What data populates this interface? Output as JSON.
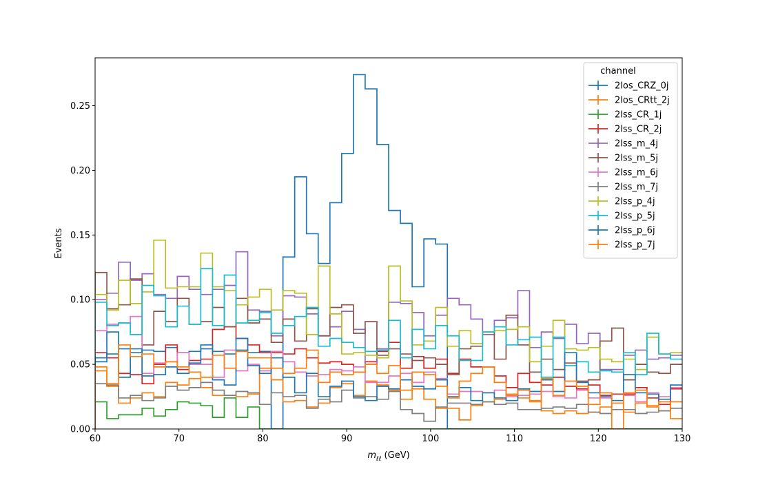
{
  "chart_data": {
    "type": "line",
    "drawstyle": "step",
    "xlabel": "m_ℓℓ (GeV)",
    "xlabel_main": "m",
    "xlabel_sub": "ℓℓ",
    "xlabel_unit": " (GeV)",
    "ylabel": "Events",
    "xlim": [
      60,
      130
    ],
    "ylim": [
      0,
      0.287
    ],
    "xticks": [
      60,
      70,
      80,
      90,
      100,
      110,
      120,
      130
    ],
    "yticks": [
      0.0,
      0.05,
      0.1,
      0.15,
      0.2,
      0.25
    ],
    "xtick_labels": [
      "60",
      "70",
      "80",
      "90",
      "100",
      "110",
      "120",
      "130"
    ],
    "ytick_labels": [
      "0.00",
      "0.05",
      "0.10",
      "0.15",
      "0.20",
      "0.25"
    ],
    "grid": false,
    "legend": {
      "title": "channel",
      "placement": "top-right"
    },
    "bin_edges": [
      60,
      61.4,
      62.8,
      64.2,
      65.6,
      67,
      68.4,
      69.8,
      71.2,
      72.6,
      74,
      75.4,
      76.8,
      78.2,
      79.6,
      81,
      82.4,
      83.8,
      85.2,
      86.6,
      88,
      89.4,
      90.8,
      92.2,
      93.6,
      95,
      96.4,
      97.8,
      99.2,
      100.6,
      102,
      103.4,
      104.8,
      106.2,
      107.6,
      109,
      110.4,
      111.8,
      113.2,
      114.6,
      116,
      117.4,
      118.8,
      120.2,
      121.6,
      123,
      124.4,
      125.8,
      127.2,
      128.6,
      130
    ],
    "series": [
      {
        "name": "2los_CRZ_0j",
        "color": "#1f77b4",
        "values": [
          0.052,
          0.058,
          0.062,
          0.059,
          0.061,
          0.06,
          0.063,
          0.059,
          0.06,
          0.062,
          0.06,
          0.058,
          0.061,
          0.059,
          0.06,
          0.0,
          0.133,
          0.195,
          0.151,
          0.128,
          0.175,
          0.213,
          0.274,
          0.263,
          0.22,
          0.169,
          0.159,
          0.11,
          0.147,
          0.143,
          0.0,
          0.0,
          0.0,
          0.0,
          0.0,
          0.0,
          0.0,
          0.0,
          0.0,
          0.0,
          0.0,
          0.0,
          0.0,
          0.0,
          0.0,
          0.0,
          0.0,
          0.0,
          0.0,
          0.0
        ]
      },
      {
        "name": "2los_CRtt_2j",
        "color": "#ff7f0e",
        "values": [
          0.045,
          0.033,
          0.02,
          0.024,
          0.028,
          0.025,
          0.036,
          0.034,
          0.039,
          0.032,
          0.026,
          0.026,
          0.025,
          0.027,
          0.047,
          0.038,
          0.021,
          0.022,
          0.017,
          0.02,
          0.032,
          0.035,
          0.026,
          0.037,
          0.034,
          0.03,
          0.023,
          0.031,
          0.023,
          0.016,
          0.016,
          0.007,
          0.018,
          0.021,
          0.023,
          0.027,
          0.024,
          0.022,
          0.014,
          0.012,
          0.014,
          0.012,
          0.013,
          0.017,
          0.02,
          0.013,
          0.02,
          0.017,
          0.014,
          0.021
        ]
      },
      {
        "name": "2lss_CR_1j",
        "color": "#2ca02c",
        "values": [
          0.021,
          0.008,
          0.011,
          0.011,
          0.016,
          0.01,
          0.015,
          0.021,
          0.02,
          0.018,
          0.009,
          0.024,
          0.009,
          0.017,
          0.0,
          0.0,
          0.0,
          0.0,
          0.0,
          0.0,
          0.0,
          0.0,
          0.0,
          0.0,
          0.0,
          0.0,
          0.0,
          0.0,
          0.0,
          0.0,
          0.0,
          0.0,
          0.0,
          0.0,
          0.0,
          0.0,
          0.0,
          0.0,
          0.0,
          0.0,
          0.0,
          0.0,
          0.0,
          0.0,
          0.0,
          0.0,
          0.0,
          0.0,
          0.0,
          0.0
        ]
      },
      {
        "name": "2lss_CR_2j",
        "color": "#d62728",
        "values": [
          0.059,
          0.055,
          0.043,
          0.042,
          0.035,
          0.05,
          0.065,
          0.046,
          0.053,
          0.054,
          0.077,
          0.079,
          0.07,
          0.065,
          0.059,
          0.059,
          0.058,
          0.062,
          0.055,
          0.051,
          0.052,
          0.05,
          0.044,
          0.052,
          0.06,
          0.067,
          0.047,
          0.056,
          0.047,
          0.054,
          0.043,
          0.054,
          0.048,
          0.048,
          0.041,
          0.032,
          0.043,
          0.036,
          0.034,
          0.04,
          0.033,
          0.031,
          0.034,
          0.026,
          0.027,
          0.027,
          0.032,
          0.024,
          0.019,
          0.031
        ]
      },
      {
        "name": "2lss_m_4j",
        "color": "#9467bd",
        "values": [
          0.1,
          0.105,
          0.129,
          0.115,
          0.12,
          0.104,
          0.101,
          0.118,
          0.108,
          0.104,
          0.108,
          0.111,
          0.137,
          0.092,
          0.091,
          0.072,
          0.103,
          0.102,
          0.089,
          0.072,
          0.079,
          0.091,
          0.077,
          0.05,
          0.062,
          0.098,
          0.097,
          0.09,
          0.072,
          0.088,
          0.101,
          0.096,
          0.085,
          0.073,
          0.084,
          0.086,
          0.107,
          0.063,
          0.075,
          0.07,
          0.081,
          0.066,
          0.074,
          0.046,
          0.046,
          0.057,
          0.061,
          0.054,
          0.055,
          0.057
        ]
      },
      {
        "name": "2lss_m_5j",
        "color": "#8c564b",
        "values": [
          0.121,
          0.093,
          0.096,
          0.116,
          0.065,
          0.091,
          0.083,
          0.101,
          0.081,
          0.083,
          0.094,
          0.079,
          0.101,
          0.082,
          0.085,
          0.067,
          0.085,
          0.068,
          0.093,
          0.072,
          0.094,
          0.096,
          0.074,
          0.083,
          0.057,
          0.062,
          0.058,
          0.053,
          0.055,
          0.05,
          0.042,
          0.062,
          0.064,
          0.075,
          0.054,
          0.088,
          0.065,
          0.044,
          0.054,
          0.046,
          0.051,
          0.037,
          0.038,
          0.068,
          0.078,
          0.038,
          0.05,
          0.044,
          0.043,
          0.05
        ]
      },
      {
        "name": "2lss_m_6j",
        "color": "#e377c2",
        "values": [
          0.076,
          0.081,
          0.082,
          0.087,
          0.043,
          0.051,
          0.052,
          0.059,
          0.05,
          0.05,
          0.04,
          0.061,
          0.045,
          0.05,
          0.045,
          0.06,
          0.052,
          0.044,
          0.041,
          0.042,
          0.046,
          0.045,
          0.048,
          0.036,
          0.036,
          0.041,
          0.043,
          0.036,
          0.044,
          0.039,
          0.027,
          0.029,
          0.029,
          0.028,
          0.03,
          0.025,
          0.026,
          0.027,
          0.029,
          0.025,
          0.024,
          0.03,
          0.024,
          0.024,
          0.022,
          0.026,
          0.021,
          0.028,
          0.025,
          0.032
        ]
      },
      {
        "name": "2lss_m_7j",
        "color": "#7f7f7f",
        "values": [
          0.035,
          0.034,
          0.024,
          0.026,
          0.022,
          0.024,
          0.033,
          0.03,
          0.032,
          0.036,
          0.03,
          0.026,
          0.029,
          0.028,
          0.019,
          0.028,
          0.025,
          0.026,
          0.016,
          0.023,
          0.021,
          0.03,
          0.024,
          0.025,
          0.023,
          0.029,
          0.015,
          0.012,
          0.006,
          0.017,
          0.02,
          0.02,
          0.019,
          0.021,
          0.019,
          0.02,
          0.015,
          0.015,
          0.016,
          0.017,
          0.016,
          0.019,
          0.013,
          0.012,
          0.015,
          0.015,
          0.012,
          0.013,
          0.014,
          0.016
        ]
      },
      {
        "name": "2lss_p_4j",
        "color": "#bcbd22",
        "values": [
          0.104,
          0.092,
          0.115,
          0.097,
          0.106,
          0.146,
          0.109,
          0.11,
          0.11,
          0.136,
          0.11,
          0.107,
          0.096,
          0.102,
          0.108,
          0.092,
          0.107,
          0.105,
          0.073,
          0.126,
          0.089,
          0.058,
          0.059,
          0.057,
          0.055,
          0.126,
          0.099,
          0.065,
          0.068,
          0.094,
          0.064,
          0.076,
          0.066,
          0.075,
          0.076,
          0.077,
          0.079,
          0.052,
          0.064,
          0.084,
          0.062,
          0.061,
          0.063,
          0.054,
          0.052,
          0.054,
          0.046,
          0.071,
          0.058,
          0.059
        ]
      },
      {
        "name": "2lss_p_5j",
        "color": "#17becf",
        "values": [
          0.098,
          0.08,
          0.082,
          0.073,
          0.111,
          0.103,
          0.079,
          0.095,
          0.081,
          0.124,
          0.08,
          0.119,
          0.082,
          0.084,
          0.09,
          0.074,
          0.08,
          0.087,
          0.094,
          0.064,
          0.07,
          0.067,
          0.063,
          0.06,
          0.061,
          0.084,
          0.055,
          0.077,
          0.062,
          0.08,
          0.072,
          0.053,
          0.053,
          0.075,
          0.079,
          0.065,
          0.069,
          0.071,
          0.04,
          0.071,
          0.049,
          0.052,
          0.044,
          0.045,
          0.044,
          0.059,
          0.042,
          0.074,
          0.058,
          0.054
        ]
      },
      {
        "name": "2lss_p_6j",
        "color": "#1f77b4",
        "values": [
          0.055,
          0.075,
          0.04,
          0.062,
          0.041,
          0.042,
          0.048,
          0.043,
          0.051,
          0.065,
          0.038,
          0.034,
          0.07,
          0.049,
          0.043,
          0.055,
          0.04,
          0.028,
          0.043,
          0.025,
          0.033,
          0.037,
          0.025,
          0.022,
          0.033,
          0.031,
          0.038,
          0.033,
          0.031,
          0.038,
          0.025,
          0.032,
          0.022,
          0.028,
          0.024,
          0.022,
          0.031,
          0.029,
          0.038,
          0.029,
          0.059,
          0.036,
          0.028,
          0.025,
          0.022,
          0.042,
          0.028,
          0.027,
          0.023,
          0.034
        ]
      },
      {
        "name": "2lss_p_7j",
        "color": "#ff7f0e",
        "values": [
          0.048,
          0.035,
          0.065,
          0.056,
          0.058,
          0.048,
          0.052,
          0.048,
          0.044,
          0.04,
          0.057,
          0.047,
          0.06,
          0.055,
          0.055,
          0.047,
          0.043,
          0.047,
          0.061,
          0.036,
          0.044,
          0.042,
          0.044,
          0.05,
          0.043,
          0.049,
          0.03,
          0.044,
          0.042,
          0.033,
          0.024,
          0.037,
          0.043,
          0.048,
          0.036,
          0.026,
          0.03,
          0.021,
          0.039,
          0.026,
          0.037,
          0.033,
          0.019,
          0.028,
          0.0,
          0.028,
          0.03,
          0.018,
          0.021,
          0.008
        ]
      }
    ]
  }
}
